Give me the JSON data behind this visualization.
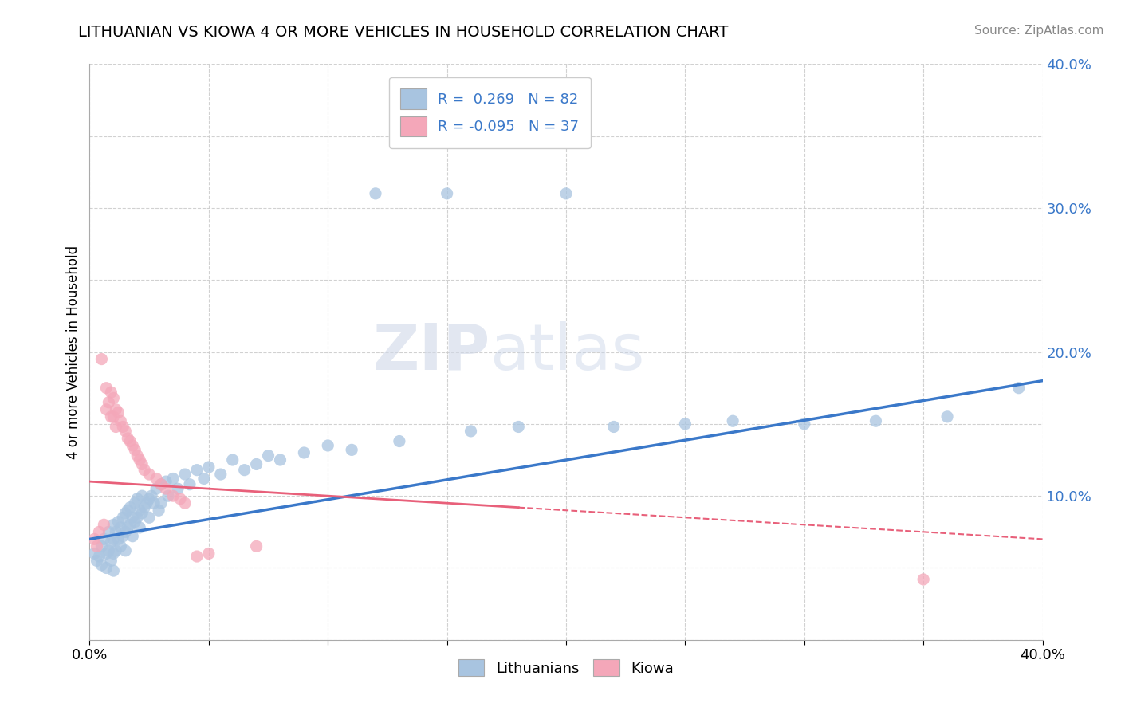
{
  "title": "LITHUANIAN VS KIOWA 4 OR MORE VEHICLES IN HOUSEHOLD CORRELATION CHART",
  "source": "Source: ZipAtlas.com",
  "ylabel": "4 or more Vehicles in Household",
  "xmin": 0.0,
  "xmax": 0.4,
  "ymin": 0.0,
  "ymax": 0.4,
  "lithuanian_R": 0.269,
  "lithuanian_N": 82,
  "kiowa_R": -0.095,
  "kiowa_N": 37,
  "lithuanian_color": "#a8c4e0",
  "kiowa_color": "#f4a7b9",
  "lithuanian_line_color": "#3a78c9",
  "kiowa_line_color": "#e8607a",
  "watermark_zip": "ZIP",
  "watermark_atlas": "atlas",
  "legend_R_color": "#3a78c9",
  "lith_line_start_y": 0.07,
  "lith_line_end_y": 0.18,
  "kiowa_line_start_y": 0.11,
  "kiowa_line_end_y": 0.07,
  "lithuanian_scatter": [
    [
      0.002,
      0.06
    ],
    [
      0.003,
      0.055
    ],
    [
      0.004,
      0.058
    ],
    [
      0.005,
      0.065
    ],
    [
      0.005,
      0.052
    ],
    [
      0.006,
      0.07
    ],
    [
      0.007,
      0.06
    ],
    [
      0.007,
      0.05
    ],
    [
      0.008,
      0.075
    ],
    [
      0.008,
      0.062
    ],
    [
      0.009,
      0.068
    ],
    [
      0.009,
      0.055
    ],
    [
      0.01,
      0.08
    ],
    [
      0.01,
      0.07
    ],
    [
      0.01,
      0.06
    ],
    [
      0.01,
      0.048
    ],
    [
      0.011,
      0.075
    ],
    [
      0.011,
      0.062
    ],
    [
      0.012,
      0.082
    ],
    [
      0.012,
      0.07
    ],
    [
      0.013,
      0.078
    ],
    [
      0.013,
      0.065
    ],
    [
      0.014,
      0.085
    ],
    [
      0.014,
      0.072
    ],
    [
      0.015,
      0.088
    ],
    [
      0.015,
      0.075
    ],
    [
      0.015,
      0.062
    ],
    [
      0.016,
      0.09
    ],
    [
      0.016,
      0.078
    ],
    [
      0.017,
      0.092
    ],
    [
      0.017,
      0.08
    ],
    [
      0.018,
      0.085
    ],
    [
      0.018,
      0.072
    ],
    [
      0.019,
      0.095
    ],
    [
      0.019,
      0.082
    ],
    [
      0.02,
      0.098
    ],
    [
      0.02,
      0.085
    ],
    [
      0.021,
      0.09
    ],
    [
      0.021,
      0.078
    ],
    [
      0.022,
      0.1
    ],
    [
      0.022,
      0.088
    ],
    [
      0.023,
      0.092
    ],
    [
      0.024,
      0.095
    ],
    [
      0.025,
      0.098
    ],
    [
      0.025,
      0.085
    ],
    [
      0.026,
      0.1
    ],
    [
      0.027,
      0.095
    ],
    [
      0.028,
      0.105
    ],
    [
      0.029,
      0.09
    ],
    [
      0.03,
      0.108
    ],
    [
      0.03,
      0.095
    ],
    [
      0.032,
      0.11
    ],
    [
      0.033,
      0.1
    ],
    [
      0.035,
      0.112
    ],
    [
      0.037,
      0.105
    ],
    [
      0.04,
      0.115
    ],
    [
      0.042,
      0.108
    ],
    [
      0.045,
      0.118
    ],
    [
      0.048,
      0.112
    ],
    [
      0.05,
      0.12
    ],
    [
      0.055,
      0.115
    ],
    [
      0.06,
      0.125
    ],
    [
      0.065,
      0.118
    ],
    [
      0.07,
      0.122
    ],
    [
      0.075,
      0.128
    ],
    [
      0.08,
      0.125
    ],
    [
      0.09,
      0.13
    ],
    [
      0.1,
      0.135
    ],
    [
      0.11,
      0.132
    ],
    [
      0.12,
      0.31
    ],
    [
      0.13,
      0.138
    ],
    [
      0.15,
      0.31
    ],
    [
      0.16,
      0.145
    ],
    [
      0.18,
      0.148
    ],
    [
      0.2,
      0.31
    ],
    [
      0.22,
      0.148
    ],
    [
      0.25,
      0.15
    ],
    [
      0.27,
      0.152
    ],
    [
      0.3,
      0.15
    ],
    [
      0.33,
      0.152
    ],
    [
      0.36,
      0.155
    ],
    [
      0.39,
      0.175
    ]
  ],
  "kiowa_scatter": [
    [
      0.002,
      0.07
    ],
    [
      0.003,
      0.065
    ],
    [
      0.004,
      0.075
    ],
    [
      0.005,
      0.195
    ],
    [
      0.006,
      0.08
    ],
    [
      0.007,
      0.175
    ],
    [
      0.007,
      0.16
    ],
    [
      0.008,
      0.165
    ],
    [
      0.009,
      0.172
    ],
    [
      0.009,
      0.155
    ],
    [
      0.01,
      0.168
    ],
    [
      0.01,
      0.155
    ],
    [
      0.011,
      0.16
    ],
    [
      0.011,
      0.148
    ],
    [
      0.012,
      0.158
    ],
    [
      0.013,
      0.152
    ],
    [
      0.014,
      0.148
    ],
    [
      0.015,
      0.145
    ],
    [
      0.016,
      0.14
    ],
    [
      0.017,
      0.138
    ],
    [
      0.018,
      0.135
    ],
    [
      0.019,
      0.132
    ],
    [
      0.02,
      0.128
    ],
    [
      0.021,
      0.125
    ],
    [
      0.022,
      0.122
    ],
    [
      0.023,
      0.118
    ],
    [
      0.025,
      0.115
    ],
    [
      0.028,
      0.112
    ],
    [
      0.03,
      0.108
    ],
    [
      0.032,
      0.105
    ],
    [
      0.035,
      0.1
    ],
    [
      0.038,
      0.098
    ],
    [
      0.04,
      0.095
    ],
    [
      0.045,
      0.058
    ],
    [
      0.05,
      0.06
    ],
    [
      0.07,
      0.065
    ],
    [
      0.35,
      0.042
    ]
  ]
}
